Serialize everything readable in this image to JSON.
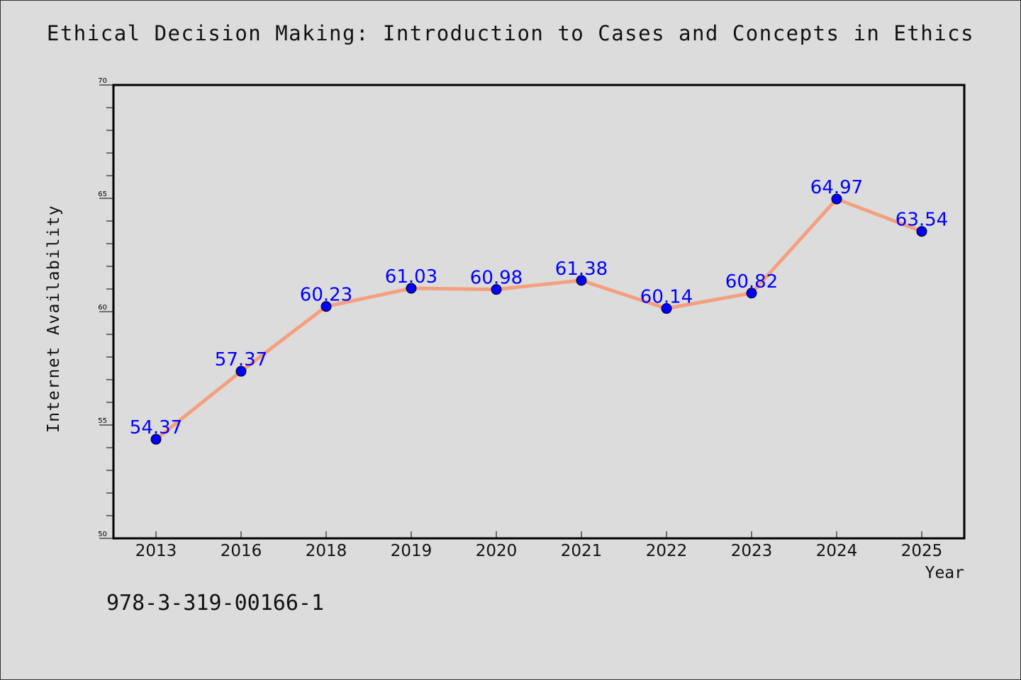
{
  "chart_data": {
    "type": "line",
    "title": "Ethical Decision Making: Introduction to Cases and Concepts in Ethics",
    "xlabel": "Year",
    "ylabel": "Internet Availability",
    "categories": [
      "2013",
      "2016",
      "2018",
      "2019",
      "2020",
      "2021",
      "2022",
      "2023",
      "2024",
      "2025"
    ],
    "values": [
      54.37,
      57.37,
      60.23,
      61.03,
      60.98,
      61.38,
      60.14,
      60.82,
      64.97,
      63.54
    ],
    "data_labels": [
      "54.37",
      "57.37",
      "60.23",
      "61.03",
      "60.98",
      "61.38",
      "60.14",
      "60.82",
      "64.97",
      "63.54"
    ],
    "ylim": [
      50,
      70
    ],
    "yticks": [
      50,
      55,
      60,
      65,
      70
    ],
    "ytick_labels": [
      "50",
      "55",
      "60",
      "65",
      "70"
    ],
    "grid": false,
    "line_color": "#f4a080",
    "marker_color": "#0000ff",
    "label_color": "#0000ff"
  },
  "footer": {
    "isbn": "978-3-319-00166-1"
  }
}
